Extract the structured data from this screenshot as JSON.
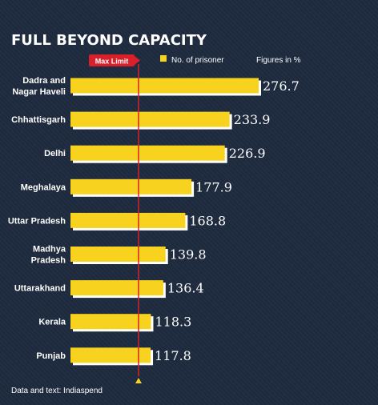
{
  "chart_data": {
    "type": "bar",
    "orientation": "horizontal",
    "title": "FULL BEYOND CAPACITY",
    "categories": [
      "Dadra and Nagar Haveli",
      "Chhattisgarh",
      "Delhi",
      "Meghalaya",
      "Uttar Pradesh",
      "Madhya Pradesh",
      "Uttarakhand",
      "Kerala",
      "Punjab"
    ],
    "category_lines": [
      [
        "Dadra and",
        "Nagar Haveli"
      ],
      [
        "Chhattisgarh"
      ],
      [
        "Delhi"
      ],
      [
        "Meghalaya"
      ],
      [
        "Uttar Pradesh"
      ],
      [
        "Madhya",
        "Pradesh"
      ],
      [
        "Uttarakhand"
      ],
      [
        "Kerala"
      ],
      [
        "Punjab"
      ]
    ],
    "values": [
      276.7,
      233.9,
      226.9,
      177.9,
      168.8,
      139.8,
      136.4,
      118.3,
      117.8
    ],
    "value_labels": [
      "276.7",
      "233.9",
      "226.9",
      "177.9",
      "168.8",
      "139.8",
      "136.4",
      "118.3",
      "117.8"
    ],
    "series": [
      {
        "name": "No. of prisoner",
        "values": [
          276.7,
          233.9,
          226.9,
          177.9,
          168.8,
          139.8,
          136.4,
          118.3,
          117.8
        ]
      }
    ],
    "legend": {
      "series_label": "No. of prisoner",
      "units_note": "Figures in %"
    },
    "reference_line": {
      "label": "Max Limit",
      "value": 100
    },
    "source": "Data and text: Indiaspend",
    "grid": false,
    "legend_position": "top"
  },
  "colors": {
    "background": "#1e2a3d",
    "bar": "#f7d21f",
    "bar_shadow": "#ffffff",
    "max_limit_line": "#d8202a",
    "text": "#ffffff"
  }
}
